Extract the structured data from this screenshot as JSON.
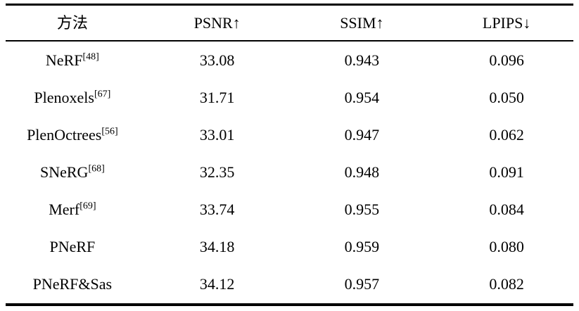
{
  "table": {
    "columns": [
      {
        "label": "方法"
      },
      {
        "label": "PSNR↑"
      },
      {
        "label": "SSIM↑"
      },
      {
        "label": "LPIPS↓"
      }
    ],
    "rows": [
      {
        "method": "NeRF",
        "ref": "[48]",
        "psnr": "33.08",
        "ssim": "0.943",
        "lpips": "0.096"
      },
      {
        "method": "Plenoxels",
        "ref": "[67]",
        "psnr": "31.71",
        "ssim": "0.954",
        "lpips": "0.050"
      },
      {
        "method": "PlenOctrees",
        "ref": "[56]",
        "psnr": "33.01",
        "ssim": "0.947",
        "lpips": "0.062"
      },
      {
        "method": "SNeRG",
        "ref": "[68]",
        "psnr": "32.35",
        "ssim": "0.948",
        "lpips": "0.091"
      },
      {
        "method": "Merf",
        "ref": "[69]",
        "psnr": "33.74",
        "ssim": "0.955",
        "lpips": "0.084"
      },
      {
        "method": "PNeRF",
        "ref": "",
        "psnr": "34.18",
        "ssim": "0.959",
        "lpips": "0.080"
      },
      {
        "method": "PNeRF&Sas",
        "ref": "",
        "psnr": "34.12",
        "ssim": "0.957",
        "lpips": "0.082"
      }
    ]
  }
}
